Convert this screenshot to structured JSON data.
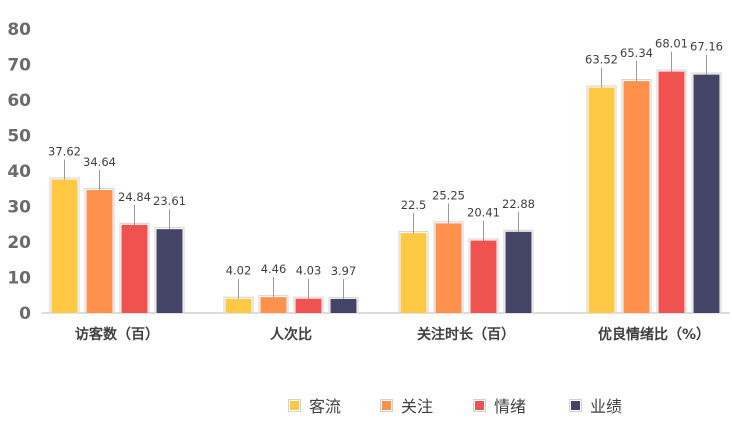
{
  "chart_data": {
    "type": "bar",
    "categories": [
      "访客数（百）",
      "人次比",
      "关注时长（百）",
      "优良情绪比（%）"
    ],
    "series": [
      {
        "name": "客流",
        "values": [
          37.62,
          4.02,
          22.5,
          63.52
        ],
        "color": "#FFC845"
      },
      {
        "name": "关注",
        "values": [
          34.64,
          4.46,
          25.25,
          65.34
        ],
        "color": "#FF914D"
      },
      {
        "name": "情绪",
        "values": [
          24.84,
          4.03,
          20.41,
          68.01
        ],
        "color": "#F0524F"
      },
      {
        "name": "业绩",
        "values": [
          23.61,
          3.97,
          22.88,
          67.16
        ],
        "color": "#444466"
      }
    ],
    "y_ticks": [
      0,
      10,
      20,
      30,
      40,
      50,
      60,
      70,
      80
    ],
    "ylim": [
      0,
      80
    ],
    "grid": false,
    "legend_position": "bottom-center",
    "data_labels": [
      [
        "37.62",
        "4.02",
        "22.5",
        "63.52"
      ],
      [
        "34.64",
        "4.46",
        "25.25",
        "65.34"
      ],
      [
        "24.84",
        "4.03",
        "20.41",
        "68.01"
      ],
      [
        "23.61",
        "3.97",
        "22.88",
        "67.16"
      ]
    ],
    "title": "",
    "xlabel": "",
    "ylabel": ""
  }
}
